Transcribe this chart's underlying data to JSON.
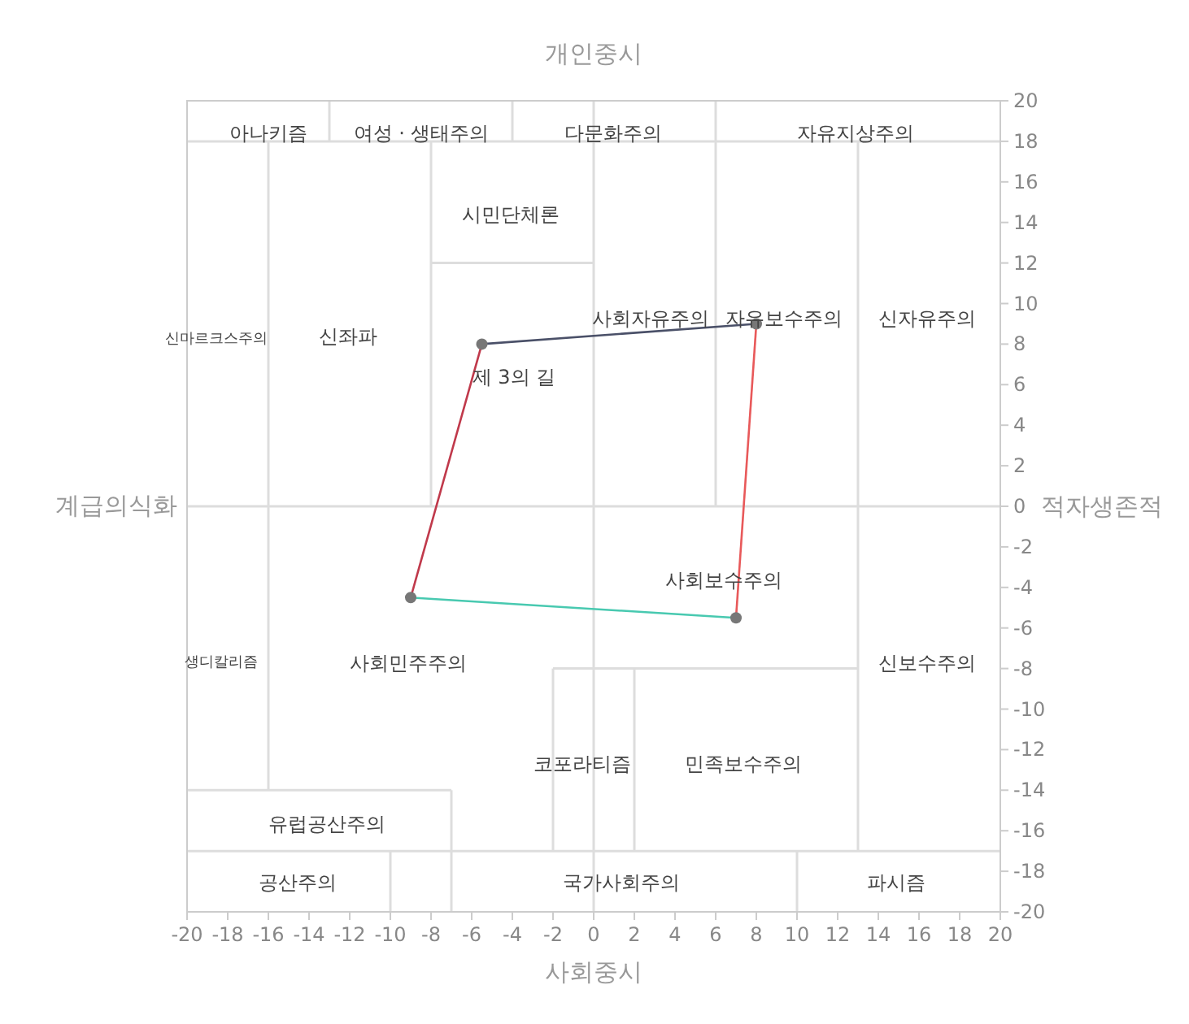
{
  "chart_data": {
    "type": "line",
    "title": "개인중시",
    "xlabel": "사회중시",
    "ylabel": "적자생존적",
    "xlim": [
      -20,
      20
    ],
    "ylim": [
      -20,
      20
    ],
    "xticks": [
      -20,
      -18,
      -16,
      -14,
      -12,
      -10,
      -8,
      -6,
      -4,
      -2,
      0,
      2,
      4,
      6,
      8,
      10,
      12,
      14,
      16,
      18,
      20
    ],
    "yticks": [
      -20,
      -18,
      -16,
      -14,
      -12,
      -10,
      -8,
      -6,
      -4,
      -2,
      0,
      2,
      4,
      6,
      8,
      10,
      12,
      14,
      16,
      18,
      20
    ],
    "grid": false,
    "series": [
      {
        "type": "line",
        "color": "#dddddd",
        "marker": "none",
        "x": [
          0,
          0
        ],
        "values": [
          20,
          -20
        ]
      },
      {
        "type": "line",
        "color": "#dddddd",
        "marker": "none",
        "x": [
          -20,
          20
        ],
        "values": [
          0,
          0
        ]
      },
      {
        "type": "line",
        "color": "#dddddd",
        "marker": "none",
        "x": [
          -20,
          20
        ],
        "values": [
          18,
          18
        ]
      },
      {
        "type": "line",
        "color": "#dddddd",
        "marker": "none",
        "x": [
          -13,
          -13
        ],
        "values": [
          18,
          20
        ]
      },
      {
        "type": "line",
        "color": "#dddddd",
        "marker": "none",
        "x": [
          -4,
          -4
        ],
        "values": [
          18,
          20
        ]
      },
      {
        "type": "line",
        "color": "#dddddd",
        "marker": "none",
        "x": [
          -16,
          -16
        ],
        "values": [
          18,
          -14
        ]
      },
      {
        "type": "line",
        "color": "#dddddd",
        "marker": "none",
        "x": [
          -8,
          -8
        ],
        "values": [
          18,
          0
        ]
      },
      {
        "type": "line",
        "color": "#dddddd",
        "marker": "none",
        "x": [
          -8,
          0
        ],
        "values": [
          12,
          12
        ]
      },
      {
        "type": "line",
        "color": "#dddddd",
        "marker": "none",
        "x": [
          6,
          6
        ],
        "values": [
          20,
          0
        ]
      },
      {
        "type": "line",
        "color": "#dddddd",
        "marker": "none",
        "x": [
          13,
          13
        ],
        "values": [
          18,
          -17
        ]
      },
      {
        "type": "line",
        "color": "#dddddd",
        "marker": "none",
        "x": [
          -2,
          13
        ],
        "values": [
          -8,
          -8
        ]
      },
      {
        "type": "line",
        "color": "#dddddd",
        "marker": "none",
        "x": [
          -2,
          -2
        ],
        "values": [
          -8,
          -17
        ]
      },
      {
        "type": "line",
        "color": "#dddddd",
        "marker": "none",
        "x": [
          2,
          2
        ],
        "values": [
          -8,
          -17
        ]
      },
      {
        "type": "line",
        "color": "#dddddd",
        "marker": "none",
        "x": [
          -20,
          -7
        ],
        "values": [
          -14,
          -14
        ]
      },
      {
        "type": "line",
        "color": "#dddddd",
        "marker": "none",
        "x": [
          -7,
          -7
        ],
        "values": [
          -14,
          -20
        ]
      },
      {
        "type": "line",
        "color": "#dddddd",
        "marker": "none",
        "x": [
          -20,
          20
        ],
        "values": [
          -17,
          -17
        ]
      },
      {
        "type": "line",
        "color": "#dddddd",
        "marker": "none",
        "x": [
          -10,
          -10
        ],
        "values": [
          -17,
          -20
        ]
      },
      {
        "type": "line",
        "color": "#dddddd",
        "marker": "none",
        "x": [
          10,
          10
        ],
        "values": [
          -17,
          -20
        ]
      },
      {
        "type": "line",
        "color": "#4a5068",
        "marker": "none",
        "x": [
          -5.5,
          8
        ],
        "values": [
          8,
          9
        ]
      },
      {
        "type": "line",
        "color": "#e8595a",
        "marker": "none",
        "x": [
          8,
          7
        ],
        "values": [
          9,
          -5.5
        ]
      },
      {
        "type": "line",
        "color": "#48c9b0",
        "marker": "none",
        "x": [
          7,
          -9
        ],
        "values": [
          -5.5,
          -4.5
        ]
      },
      {
        "type": "line",
        "color": "#c0394b",
        "marker": "none",
        "x": [
          -9,
          -5.5
        ],
        "values": [
          -4.5,
          8
        ]
      },
      {
        "type": "scatter",
        "color": "#777777",
        "marker": "circle",
        "x": [
          -5.5,
          8,
          7,
          -9
        ],
        "values": [
          8,
          9,
          -5.5,
          -4.5
        ]
      }
    ],
    "annotations": [
      "계급의식화",
      "아나키즘",
      "여성 · 생태주의",
      "다문화주의",
      "자유지상주의",
      "시민단체론",
      "신마르크스주의",
      "신좌파",
      "사회자유주의",
      "자유보수주의",
      "신자유주의",
      "제 3의 길",
      "사회보수주의",
      "생디칼리즘",
      "사회민주주의",
      "신보수주의",
      "코포라티즘",
      "민족보수주의",
      "유럽공산주의",
      "공산주의",
      "국가사회주의",
      "파시즘"
    ]
  }
}
